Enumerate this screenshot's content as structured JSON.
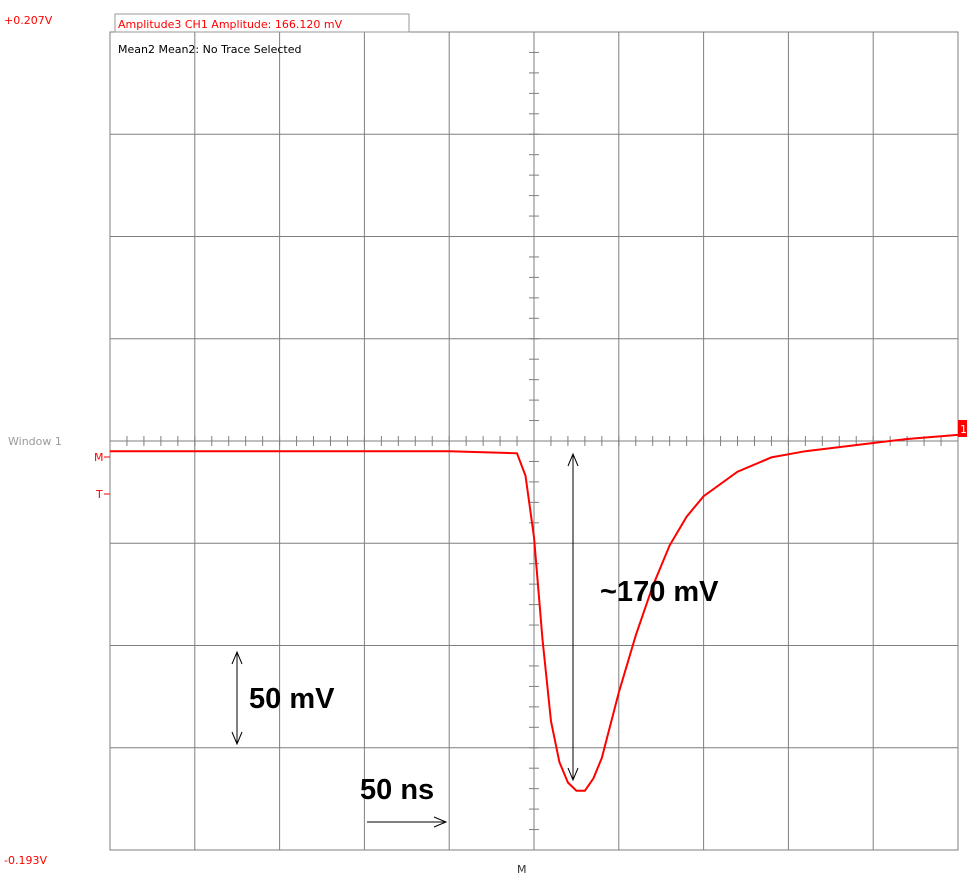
{
  "window": {
    "label": "Window 1"
  },
  "axis": {
    "y_top_label": "+0.207V",
    "y_bottom_label": "-0.193V",
    "ymax": 0.207,
    "ymin": -0.193,
    "marker_m": "M",
    "marker_t": "T",
    "bottom_marker_m": "M",
    "channel_marker": "1"
  },
  "readouts": {
    "amplitude": "Amplitude3 CH1 Amplitude: 166.120 mV",
    "mean": "Mean2 Mean2: No Trace Selected"
  },
  "annotations": {
    "amplitude_text": "~170 mV",
    "vertical_scale": "50 mV",
    "time_scale": "50 ns"
  },
  "colors": {
    "trace": "#ff0000",
    "grid": "#7f7f7f",
    "annotation": "#000000"
  },
  "chart_data": {
    "type": "line",
    "title": "",
    "xlabel": "",
    "ylabel": "",
    "ylim": [
      -0.193,
      0.207
    ],
    "series": [
      {
        "name": "",
        "x": [
          -250,
          -200,
          -150,
          -100,
          -50,
          -10,
          -5,
          0,
          5,
          10,
          15,
          20,
          25,
          30,
          35,
          40,
          45,
          50,
          60,
          70,
          80,
          90,
          100,
          120,
          140,
          160,
          180,
          200,
          220,
          250
        ],
        "y": [
          0.002,
          0.002,
          0.002,
          0.002,
          0.002,
          0.001,
          -0.01,
          -0.04,
          -0.09,
          -0.13,
          -0.15,
          -0.16,
          -0.164,
          -0.164,
          -0.158,
          -0.148,
          -0.132,
          -0.116,
          -0.088,
          -0.064,
          -0.044,
          -0.03,
          -0.02,
          -0.008,
          -0.001,
          0.002,
          0.004,
          0.006,
          0.008,
          0.01
        ]
      }
    ]
  }
}
